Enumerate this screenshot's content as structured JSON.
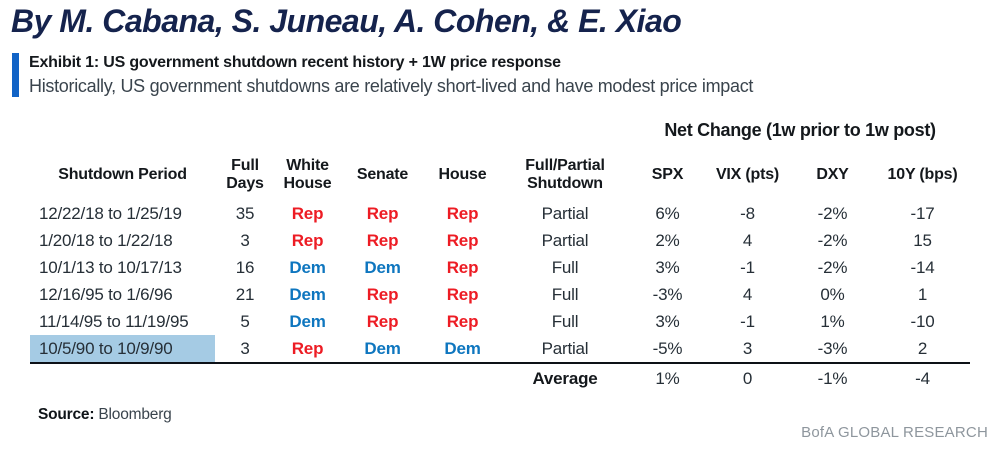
{
  "byline": "By M. Cabana, S. Juneau, A. Cohen, & E. Xiao",
  "exhibit": {
    "title": "Exhibit 1: US government shutdown recent history + 1W price response",
    "subtitle": "Historically, US government shutdowns are relatively short-lived and have modest price impact"
  },
  "table": {
    "group_header": "Net Change (1w prior to 1w post)",
    "columns": [
      "Shutdown Period",
      "Full Days",
      "White House",
      "Senate",
      "House",
      "Full/Partial Shutdown",
      "SPX",
      "VIX (pts)",
      "DXY",
      "10Y (bps)"
    ],
    "rows": [
      {
        "period": "12/22/18 to 1/25/19",
        "full_days": "35",
        "white_house": "Rep",
        "senate": "Rep",
        "house": "Rep",
        "type": "Partial",
        "spx": "6%",
        "vix": "-8",
        "dxy": "-2%",
        "y10": "-17",
        "highlight": false
      },
      {
        "period": "1/20/18 to 1/22/18",
        "full_days": "3",
        "white_house": "Rep",
        "senate": "Rep",
        "house": "Rep",
        "type": "Partial",
        "spx": "2%",
        "vix": "4",
        "dxy": "-2%",
        "y10": "15",
        "highlight": false
      },
      {
        "period": "10/1/13 to 10/17/13",
        "full_days": "16",
        "white_house": "Dem",
        "senate": "Dem",
        "house": "Rep",
        "type": "Full",
        "spx": "3%",
        "vix": "-1",
        "dxy": "-2%",
        "y10": "-14",
        "highlight": false
      },
      {
        "period": "12/16/95 to 1/6/96",
        "full_days": "21",
        "white_house": "Dem",
        "senate": "Rep",
        "house": "Rep",
        "type": "Full",
        "spx": "-3%",
        "vix": "4",
        "dxy": "0%",
        "y10": "1",
        "highlight": false
      },
      {
        "period": "11/14/95 to 11/19/95",
        "full_days": "5",
        "white_house": "Dem",
        "senate": "Rep",
        "house": "Rep",
        "type": "Full",
        "spx": "3%",
        "vix": "-1",
        "dxy": "1%",
        "y10": "-10",
        "highlight": false
      },
      {
        "period": "10/5/90 to 10/9/90",
        "full_days": "3",
        "white_house": "Rep",
        "senate": "Dem",
        "house": "Dem",
        "type": "Partial",
        "spx": "-5%",
        "vix": "3",
        "dxy": "-3%",
        "y10": "2",
        "highlight": true
      }
    ],
    "average": {
      "label": "Average",
      "spx": "1%",
      "vix": "0",
      "dxy": "-1%",
      "y10": "-4"
    }
  },
  "source": {
    "label": "Source:",
    "value": "Bloomberg"
  },
  "footer": "BofA GLOBAL RESEARCH",
  "colors": {
    "title": "#15234d",
    "accent_bar": "#1163c6",
    "republican": "#ed1c24",
    "democrat": "#0e76bf",
    "highlight": "#a5cbe4",
    "footer": "#8e969d"
  }
}
